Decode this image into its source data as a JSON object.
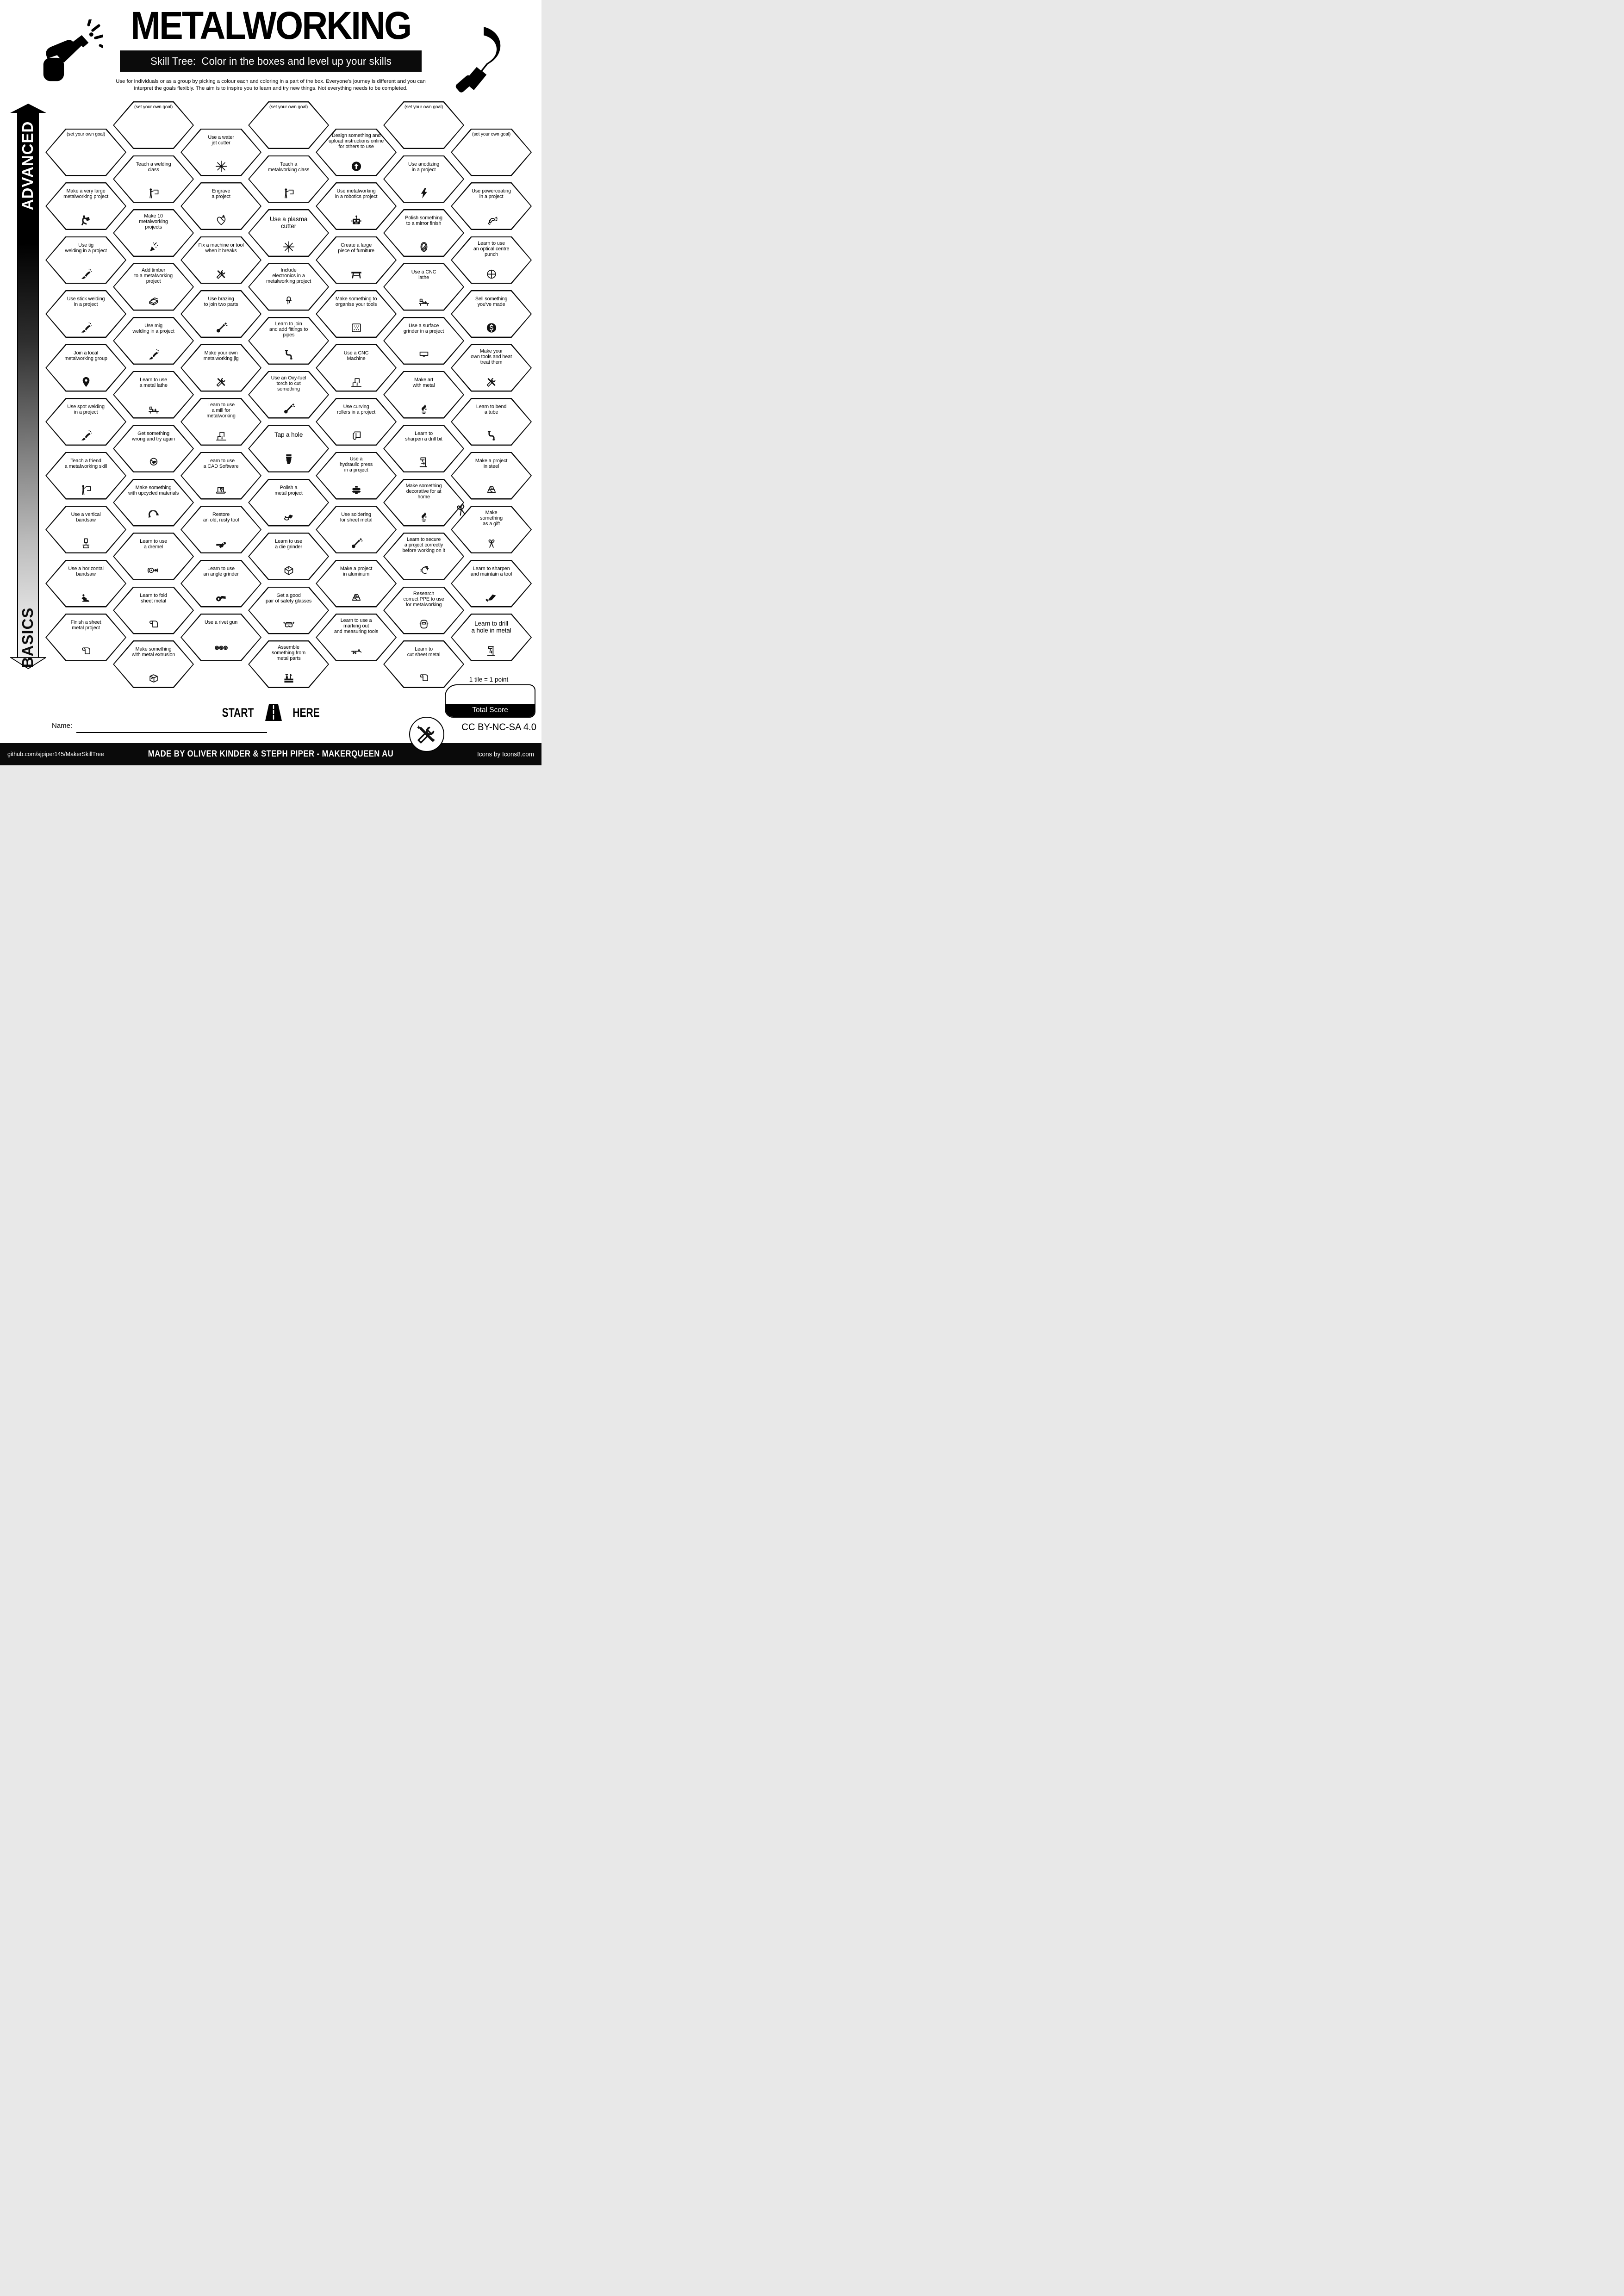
{
  "colors": {
    "ink": "#000000",
    "paper": "#ffffff"
  },
  "header": {
    "title": "METALWORKING",
    "subtitle": "Skill Tree:  Color in the boxes and level up your skills",
    "description": "Use for individuals or as a group by picking a colour each and coloring in a part of the box.  Everyone's journey is different and you can\ninterpret the goals flexibly.  The aim is to inspire you to learn and try new things. Not everything needs to be completed.",
    "left_icon": "hand-welding-torch",
    "right_icon": "welding-gun"
  },
  "axis": {
    "advanced": "ADVANCED",
    "basics": "BASICS"
  },
  "hexes": [
    {
      "c": 0,
      "r": 0,
      "label": "(set your own goal)",
      "goal": true
    },
    {
      "c": 0,
      "r": 1,
      "label": "Make a very large\nmetalworking project",
      "icon": "carry"
    },
    {
      "c": 0,
      "r": 2,
      "label": "Use tig\nwelding in a project",
      "icon": "torch"
    },
    {
      "c": 0,
      "r": 3,
      "label": "Use stick welding\nin a project",
      "icon": "torch"
    },
    {
      "c": 0,
      "r": 4,
      "label": "Join a local\nmetalworking group",
      "icon": "pin"
    },
    {
      "c": 0,
      "r": 5,
      "label": "Use spot welding\nin a project",
      "icon": "torch"
    },
    {
      "c": 0,
      "r": 6,
      "label": "Teach a friend\na metalworking skill",
      "icon": "teach"
    },
    {
      "c": 0,
      "r": 7,
      "label": "Use a vertical\nbandsaw",
      "icon": "bandsawv"
    },
    {
      "c": 0,
      "r": 8,
      "label": "Use a horizontal\nbandsaw",
      "icon": "bandsawh"
    },
    {
      "c": 0,
      "r": 9,
      "label": "Finish a sheet\nmetal project",
      "icon": "sheet"
    },
    {
      "c": 1,
      "r": 0,
      "label": "(set your own goal)",
      "goal": true
    },
    {
      "c": 1,
      "r": 1,
      "label": "Teach a welding\nclass",
      "icon": "teach"
    },
    {
      "c": 1,
      "r": 2,
      "label": "Make 10\nmetalworking\nprojects",
      "icon": "confetti"
    },
    {
      "c": 1,
      "r": 3,
      "label": "Add timber\nto a metalworking\nproject",
      "icon": "wood"
    },
    {
      "c": 1,
      "r": 4,
      "label": "Use mig\nwelding in a project",
      "icon": "torch"
    },
    {
      "c": 1,
      "r": 5,
      "label": "Learn to use\na metal lathe",
      "icon": "lathe"
    },
    {
      "c": 1,
      "r": 6,
      "label": "Get something\nwrong and try again",
      "icon": "facepalm"
    },
    {
      "c": 1,
      "r": 7,
      "label": "Make something\nwith upcycled materials",
      "icon": "recycle"
    },
    {
      "c": 1,
      "r": 8,
      "label": "Learn to use\na dremel",
      "icon": "dremel"
    },
    {
      "c": 1,
      "r": 9,
      "label": "Learn to fold\nsheet metal",
      "icon": "sheet"
    },
    {
      "c": 1,
      "r": 10,
      "label": "Make something\nwith metal extrusion",
      "icon": "extrusion"
    },
    {
      "c": 2,
      "r": 0,
      "label": "Use a water\njet cutter",
      "icon": "spark"
    },
    {
      "c": 2,
      "r": 1,
      "label": "Engrave\na project",
      "icon": "engrave"
    },
    {
      "c": 2,
      "r": 2,
      "label": "Fix a machine or tool\nwhen it breaks",
      "icon": "tools"
    },
    {
      "c": 2,
      "r": 3,
      "label": "Use brazing\nto join two parts",
      "icon": "solder"
    },
    {
      "c": 2,
      "r": 4,
      "label": "Make your own\nmetalworking jig",
      "icon": "tools"
    },
    {
      "c": 2,
      "r": 5,
      "label": "Learn to use\na mill for\nmetalworking",
      "icon": "cnc"
    },
    {
      "c": 2,
      "r": 6,
      "label": "Learn to use\na CAD Software",
      "icon": "laptop"
    },
    {
      "c": 2,
      "r": 7,
      "label": "Restore\nan old, rusty tool",
      "icon": "wrench"
    },
    {
      "c": 2,
      "r": 8,
      "label": "Learn to use\nan angle grinder",
      "icon": "anglegrinder"
    },
    {
      "c": 2,
      "r": 9,
      "label": "Use a rivet gun",
      "icon": "rivets"
    },
    {
      "c": 3,
      "r": 0,
      "label": "(set your own goal)",
      "goal": true
    },
    {
      "c": 3,
      "r": 1,
      "label": "Teach a\nmetalworking class",
      "icon": "teach"
    },
    {
      "c": 3,
      "r": 2,
      "label": "Use a plasma\ncutter",
      "icon": "spark",
      "big": true
    },
    {
      "c": 3,
      "r": 3,
      "label": "Include\nelectronics in a\nmetalworking project",
      "icon": "led"
    },
    {
      "c": 3,
      "r": 4,
      "label": "Learn to join\nand add fittings to\npipes",
      "icon": "pipe"
    },
    {
      "c": 3,
      "r": 5,
      "label": "Use an Oxy-fuel\ntorch to cut\nsomething",
      "icon": "solder"
    },
    {
      "c": 3,
      "r": 6,
      "label": "Tap a hole",
      "icon": "bolt",
      "big": true
    },
    {
      "c": 3,
      "r": 7,
      "label": "Polish a\nmetal project",
      "icon": "polish"
    },
    {
      "c": 3,
      "r": 8,
      "label": "Learn to use\na die grinder",
      "icon": "die"
    },
    {
      "c": 3,
      "r": 9,
      "label": "Get a good\npair of safety glasses",
      "icon": "glasses"
    },
    {
      "c": 3,
      "r": 10,
      "label": "Assemble\nsomething from\nmetal parts",
      "icon": "toolbox"
    },
    {
      "c": 4,
      "r": 0,
      "label": "Design something and\nupload instructions online\nfor others to use",
      "icon": "upload"
    },
    {
      "c": 4,
      "r": 1,
      "label": "Use metalworking\nin a robotics project",
      "icon": "robot"
    },
    {
      "c": 4,
      "r": 2,
      "label": "Create a large\npiece of furniture",
      "icon": "table"
    },
    {
      "c": 4,
      "r": 3,
      "label": "Make something to\norganise your tools",
      "icon": "griddots"
    },
    {
      "c": 4,
      "r": 4,
      "label": "Use a CNC\nMachine",
      "icon": "cnc"
    },
    {
      "c": 4,
      "r": 5,
      "label": "Use curving\nrollers in a project",
      "icon": "roller"
    },
    {
      "c": 4,
      "r": 6,
      "label": "Use a\nhydraulic press\nin a project",
      "icon": "press"
    },
    {
      "c": 4,
      "r": 7,
      "label": "Use soldering\nfor sheet metal",
      "icon": "solder"
    },
    {
      "c": 4,
      "r": 8,
      "label": "Make a project\nin aluminum",
      "icon": "ingots"
    },
    {
      "c": 4,
      "r": 9,
      "label": "Learn to use a\nmarking out\nand measuring tools",
      "icon": "caliper"
    },
    {
      "c": 5,
      "r": 0,
      "label": "(set your own goal)",
      "goal": true
    },
    {
      "c": 5,
      "r": 1,
      "label": "Use anodizing\nin a project",
      "icon": "lightning"
    },
    {
      "c": 5,
      "r": 2,
      "label": "Polish something\nto a mirror finish",
      "icon": "mirror"
    },
    {
      "c": 5,
      "r": 3,
      "label": "Use a CNC\nlathe",
      "icon": "lathe"
    },
    {
      "c": 5,
      "r": 4,
      "label": "Use a surface\ngrinder in a project",
      "icon": "surface"
    },
    {
      "c": 5,
      "r": 5,
      "label": "Make art\nwith metal",
      "icon": "art"
    },
    {
      "c": 5,
      "r": 6,
      "label": "Learn to\nsharpen a drill bit",
      "icon": "drillpress"
    },
    {
      "c": 5,
      "r": 7,
      "label": "Make something\ndecorative for at\nhome",
      "icon": "art"
    },
    {
      "c": 5,
      "r": 8,
      "label": "Learn to secure\na project correctly\nbefore working on it",
      "icon": "clamp"
    },
    {
      "c": 5,
      "r": 9,
      "label": "Research\ncorrect PPE to use\nfor metalworking",
      "icon": "helmet"
    },
    {
      "c": 5,
      "r": 10,
      "label": "Learn to\ncut sheet metal",
      "icon": "sheet"
    },
    {
      "c": 6,
      "r": 0,
      "label": "(set your own goal)",
      "goal": true
    },
    {
      "c": 6,
      "r": 1,
      "label": "Use powercoating\nin a project",
      "icon": "spraygun"
    },
    {
      "c": 6,
      "r": 2,
      "label": "Learn to use\nan optical centre\npunch",
      "icon": "punch"
    },
    {
      "c": 6,
      "r": 3,
      "label": "Sell something\nyou've made",
      "icon": "dollar"
    },
    {
      "c": 6,
      "r": 4,
      "label": "Make your\nown tools and heat\ntreat them",
      "icon": "tools"
    },
    {
      "c": 6,
      "r": 5,
      "label": "Learn to bend\na tube",
      "icon": "pipe"
    },
    {
      "c": 6,
      "r": 6,
      "label": "Make a project\nin steel",
      "icon": "ingots"
    },
    {
      "c": 6,
      "r": 7,
      "label": "Make\nsomething\nas a gift",
      "icon": "gift",
      "badge": "bow"
    },
    {
      "c": 6,
      "r": 8,
      "label": "Learn to sharpen\nand maintain a tool",
      "icon": "saw"
    },
    {
      "c": 6,
      "r": 9,
      "label": "Learn to drill\na hole in metal",
      "icon": "drillpress",
      "big": true
    }
  ],
  "start": {
    "start_label": "START",
    "here_label": "HERE",
    "icon": "road"
  },
  "name": {
    "label": "Name:"
  },
  "score": {
    "note": "1 tile = 1 point",
    "label": "Total Score"
  },
  "license": {
    "label": "CC BY-NC-SA 4.0",
    "badge_icon": "crossed-tools"
  },
  "footer": {
    "left": "github.com/sjpiper145/MakerSkillTree",
    "center": "MADE BY OLIVER KINDER & STEPH PIPER  -  MAKERQUEEN AU",
    "right": "Icons by Icons8.com"
  }
}
